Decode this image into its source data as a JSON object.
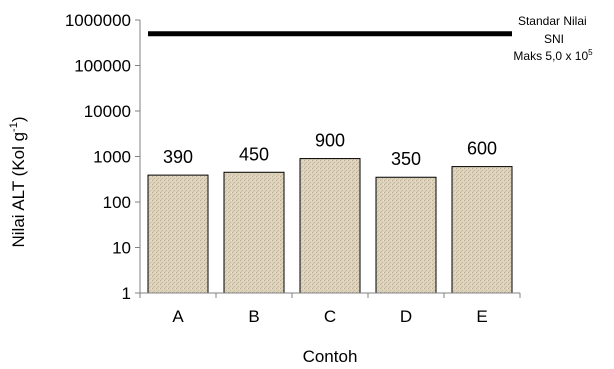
{
  "chart_data": {
    "type": "bar",
    "yscale": "log",
    "ylim": [
      1,
      1000000
    ],
    "yticks": [
      "1",
      "10",
      "100",
      "1000",
      "10000",
      "100000",
      "1000000"
    ],
    "categories": [
      "A",
      "B",
      "C",
      "D",
      "E"
    ],
    "values": [
      390,
      450,
      900,
      350,
      600
    ],
    "data_labels": [
      "390",
      "450",
      "900",
      "350",
      "600"
    ],
    "xlabel": "Contoh",
    "ylabel": {
      "main": "Nilai ALT (Kol g",
      "sup": "-1",
      "end": ")"
    },
    "reference_line": {
      "value": 500000,
      "label_lines": [
        "Standar Nilai",
        "SNI"
      ],
      "label_last": {
        "main": "Maks 5,0 x 10",
        "sup": "5"
      }
    },
    "colors": {
      "bar_fill": "#d9cdb6",
      "bar_stroke": "#000000",
      "reference_line": "#000000"
    },
    "grid": false
  }
}
